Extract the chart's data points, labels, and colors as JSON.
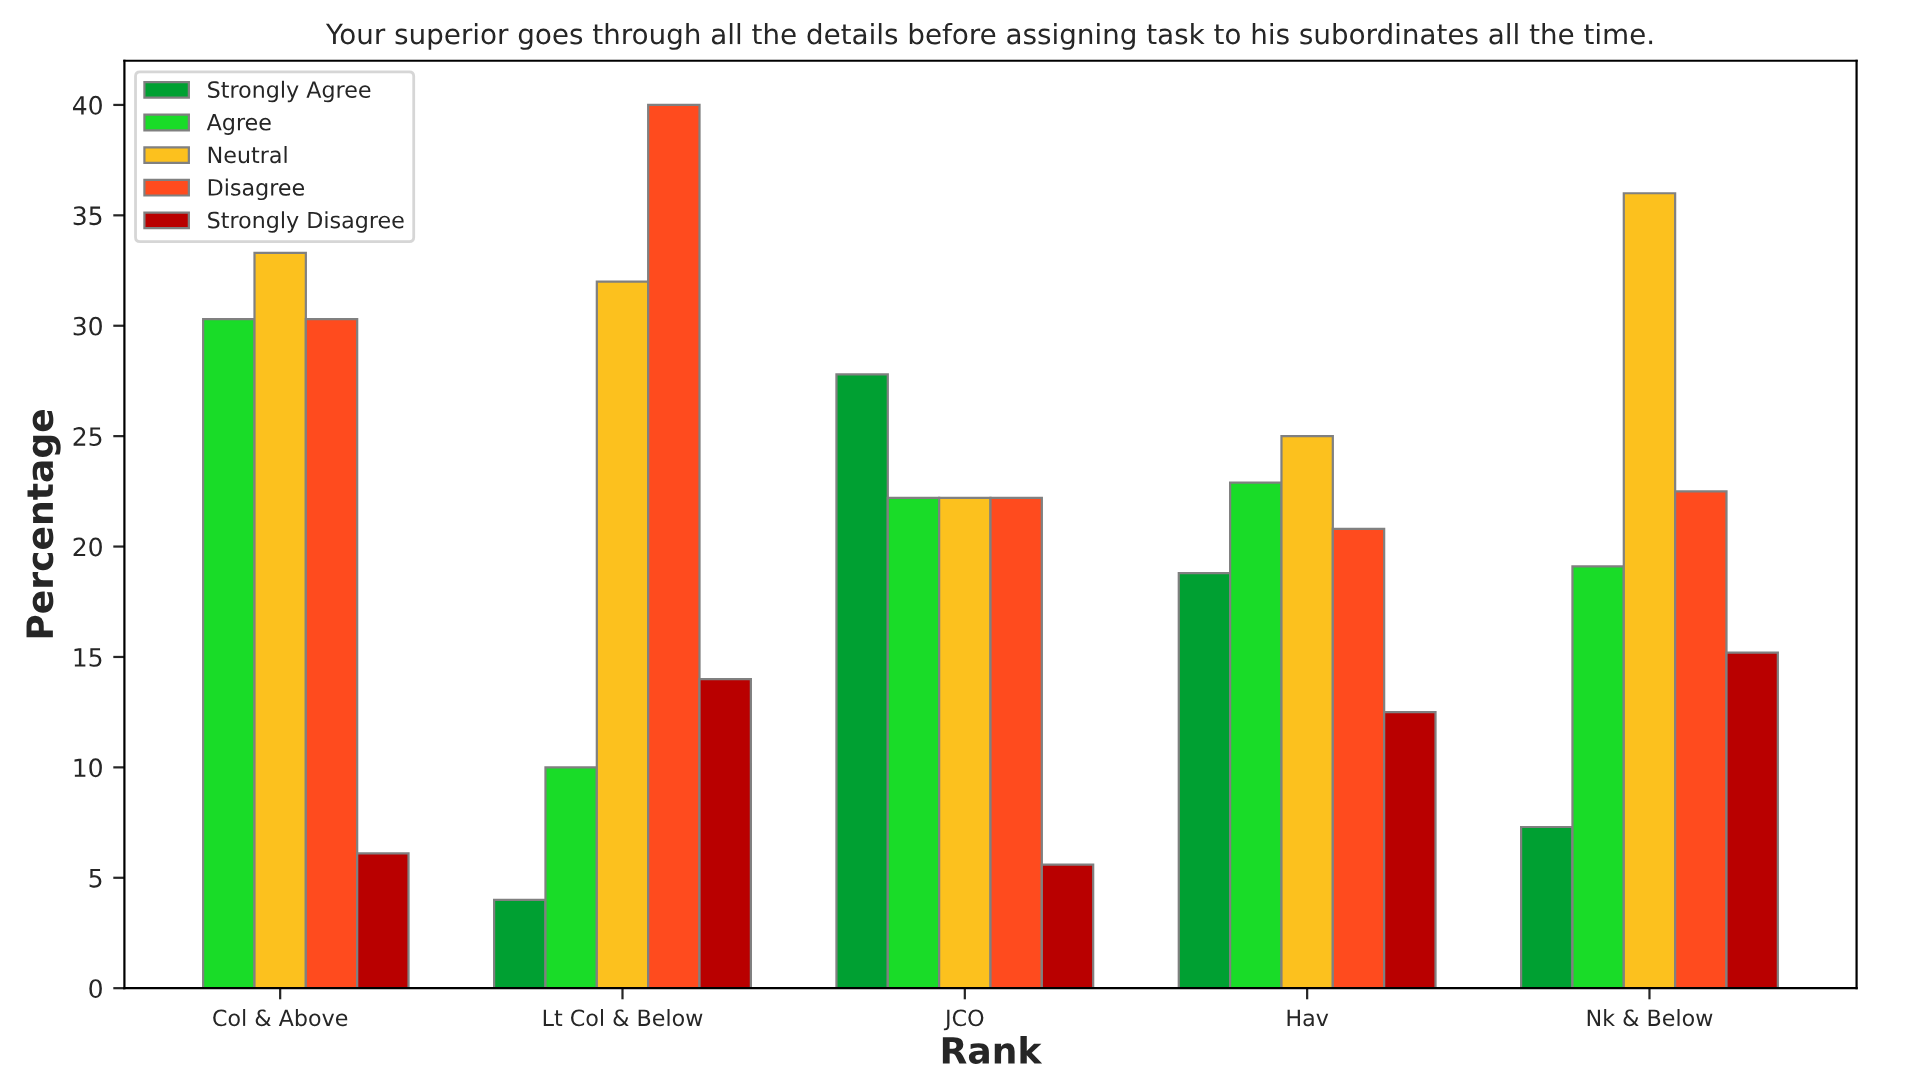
{
  "chart_data": {
    "type": "bar",
    "title": "Your superior goes through all the details before assigning task to his subordinates all the time.",
    "xlabel": "Rank",
    "ylabel": "Percentage",
    "categories": [
      "Col & Above",
      "Lt Col & Below",
      "JCO",
      "Hav",
      "Nk & Below"
    ],
    "series": [
      {
        "name": "Strongly Agree",
        "color": "#00a032",
        "values": [
          null,
          4,
          27.8,
          18.8,
          7.3
        ]
      },
      {
        "name": "Agree",
        "color": "#19dc28",
        "values": [
          30.3,
          10,
          22.2,
          22.9,
          19.1
        ]
      },
      {
        "name": "Neutral",
        "color": "#fcc11e",
        "values": [
          33.3,
          32,
          22.2,
          25,
          36
        ]
      },
      {
        "name": "Disagree",
        "color": "#ff4b1e",
        "values": [
          30.3,
          40,
          22.2,
          20.8,
          22.5
        ]
      },
      {
        "name": "Strongly Disagree",
        "color": "#b90000",
        "values": [
          6.1,
          14,
          5.6,
          12.5,
          15.2
        ]
      }
    ],
    "ylim": [
      0,
      42
    ],
    "yticks": [
      0,
      5,
      10,
      15,
      20,
      25,
      30,
      35,
      40
    ],
    "legend": "top left",
    "grid": false
  }
}
